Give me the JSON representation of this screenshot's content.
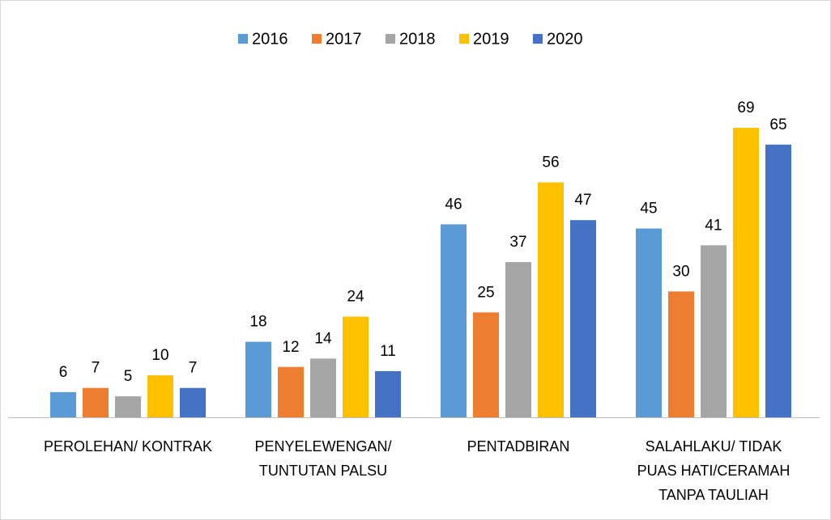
{
  "chart_data": {
    "type": "bar",
    "categories": [
      "PEROLEHAN/ KONTRAK",
      "PENYELEWENGAN/ TUNTUTAN PALSU",
      "PENTADBIRAN",
      "SALAHLAKU/ TIDAK PUAS HATI/CERAMAH TANPA TAULIAH"
    ],
    "series": [
      {
        "name": "2016",
        "color": "#5b9bd5",
        "values": [
          6,
          18,
          46,
          45
        ]
      },
      {
        "name": "2017",
        "color": "#ed7d31",
        "values": [
          7,
          12,
          25,
          30
        ]
      },
      {
        "name": "2018",
        "color": "#a5a5a5",
        "values": [
          5,
          14,
          37,
          41
        ]
      },
      {
        "name": "2019",
        "color": "#ffc000",
        "values": [
          10,
          24,
          56,
          69
        ]
      },
      {
        "name": "2020",
        "color": "#4472c4",
        "values": [
          7,
          11,
          47,
          65
        ]
      }
    ],
    "ylim": [
      0,
      80
    ],
    "legend": "top"
  }
}
